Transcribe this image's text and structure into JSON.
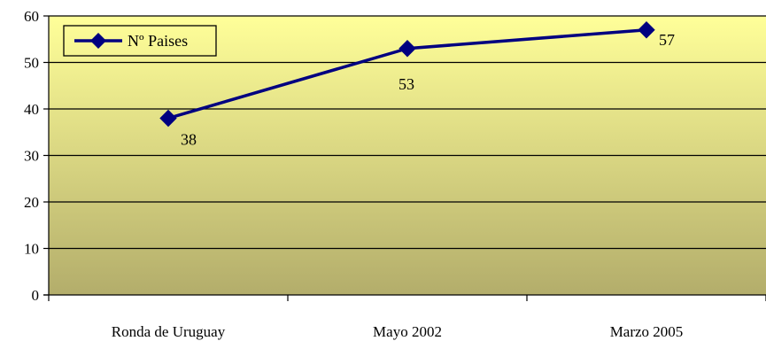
{
  "chart_data": {
    "type": "line",
    "categories": [
      "Ronda de Uruguay",
      "Mayo 2002",
      "Marzo 2005"
    ],
    "series": [
      {
        "name": "Nº Paises",
        "values": [
          38,
          53,
          57
        ]
      }
    ],
    "data_labels": [
      "38",
      "53",
      "57"
    ],
    "ylim": [
      0,
      60
    ],
    "yticks": [
      0,
      10,
      20,
      30,
      40,
      50,
      60
    ],
    "grid": true,
    "legend": "top-left",
    "colors": {
      "series": "#000080",
      "plot_bg_top": "#ffff99",
      "plot_bg_bottom": "#b3ad6b",
      "grid": "#000000"
    },
    "marker": "diamond"
  }
}
